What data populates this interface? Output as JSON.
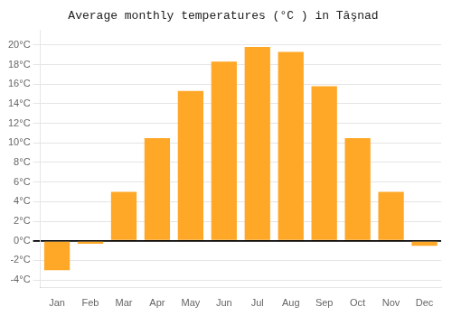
{
  "chart_data": {
    "type": "bar",
    "title": "Average monthly temperatures (°C ) in Tăşnad",
    "categories": [
      "Jan",
      "Feb",
      "Mar",
      "Apr",
      "May",
      "Jun",
      "Jul",
      "Aug",
      "Sep",
      "Oct",
      "Nov",
      "Dec"
    ],
    "values": [
      -3.0,
      -0.3,
      5.0,
      10.5,
      15.3,
      18.3,
      19.8,
      19.3,
      15.8,
      10.5,
      5.0,
      -0.5
    ],
    "color": "#FFA726",
    "ylim": [
      -4.8,
      21.5
    ],
    "yticks": [
      {
        "value": -4,
        "label": "-4°C"
      },
      {
        "value": -2,
        "label": "-2°C"
      },
      {
        "value": 0,
        "label": "0°C"
      },
      {
        "value": 2,
        "label": "2°C"
      },
      {
        "value": 4,
        "label": "4°C"
      },
      {
        "value": 6,
        "label": "6°C"
      },
      {
        "value": 8,
        "label": "8°C"
      },
      {
        "value": 10,
        "label": "10°C"
      },
      {
        "value": 12,
        "label": "12°C"
      },
      {
        "value": 14,
        "label": "14°C"
      },
      {
        "value": 16,
        "label": "16°C"
      },
      {
        "value": 18,
        "label": "18°C"
      },
      {
        "value": 20,
        "label": "20°C"
      }
    ],
    "grid": true
  }
}
